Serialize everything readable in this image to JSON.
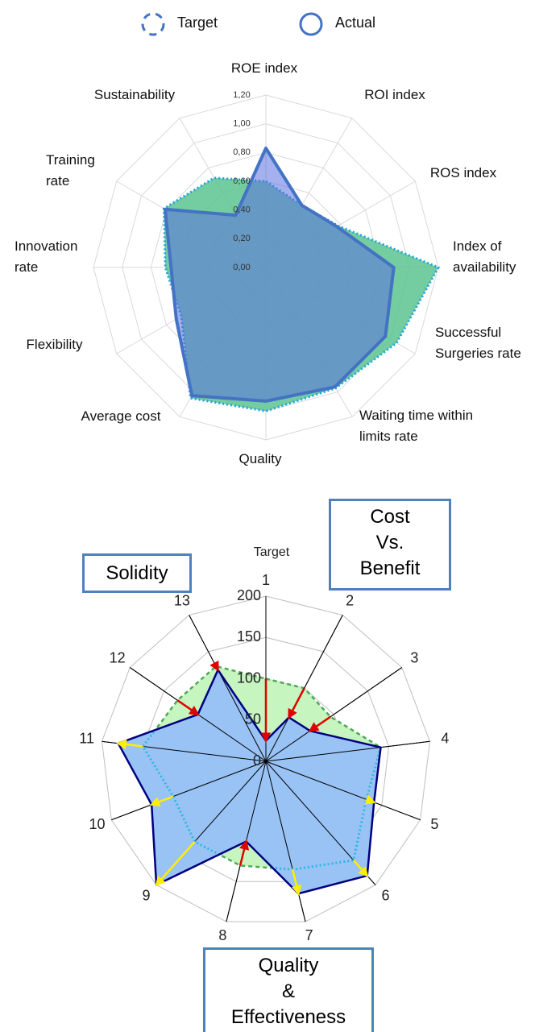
{
  "chart_data": [
    {
      "type": "radar",
      "categories": [
        "ROE index",
        "ROI index",
        "ROS index",
        "Index of availability",
        "Successful Surgeries rate",
        "Waiting time within limits rate",
        "Quality",
        "Average cost",
        "Flexibility",
        "Innovation rate",
        "Training rate",
        "Sustainability"
      ],
      "series": [
        {
          "name": "Target",
          "color": "#5cc48f",
          "values": [
            0.6,
            0.5,
            0.58,
            1.2,
            1.05,
            0.97,
            1.0,
            1.05,
            0.68,
            0.7,
            0.82,
            0.72
          ]
        },
        {
          "name": "Actual",
          "color": "#4472c4",
          "values": [
            0.83,
            0.5,
            0.57,
            0.89,
            0.96,
            0.96,
            0.93,
            1.03,
            0.72,
            0.66,
            0.81,
            0.42
          ]
        }
      ],
      "ylim": [
        0,
        1.2
      ],
      "yticks": [
        {
          "value": 0,
          "label": "0,00"
        },
        {
          "value": 0.2,
          "label": "0,20"
        },
        {
          "value": 0.4,
          "label": "0,40"
        },
        {
          "value": 0.6,
          "label": "0,60"
        },
        {
          "value": 0.8,
          "label": "0,80"
        },
        {
          "value": 1.0,
          "label": "1,00"
        },
        {
          "value": 1.2,
          "label": "1,20"
        }
      ],
      "grid": true,
      "legend": "top"
    },
    {
      "type": "radar",
      "axis_title": "Target",
      "categories": [
        "1",
        "2",
        "3",
        "4",
        "5",
        "6",
        "7",
        "8",
        "9",
        "10",
        "11",
        "12",
        "13"
      ],
      "series": [
        {
          "color": "#4daa57",
          "values": [
            100,
            100,
            95,
            140,
            130,
            160,
            135,
            130,
            130,
            120,
            150,
            130,
            130
          ]
        },
        {
          "color": "#000080",
          "values": [
            25,
            60,
            65,
            140,
            140,
            185,
            165,
            100,
            200,
            148,
            180,
            100,
            125
          ]
        }
      ],
      "ylim": [
        0,
        200
      ],
      "yticks": [
        0,
        50,
        100,
        150,
        200
      ],
      "grid": true,
      "annotations": [
        "Cost Vs. Benefit",
        "Solidity",
        "Quality & Effectiveness"
      ]
    }
  ]
}
